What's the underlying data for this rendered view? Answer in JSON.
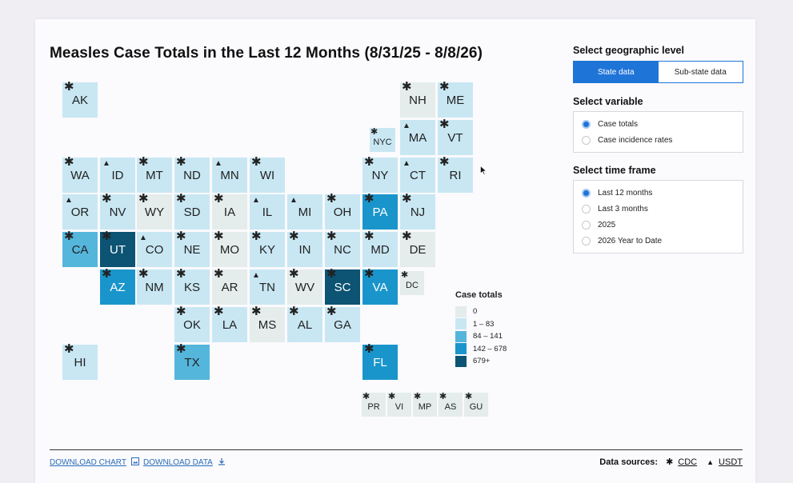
{
  "title": "Measles Case Totals in the Last 12 Months (8/31/25 - 8/8/26)",
  "tiles": [
    {
      "abbr": "AK",
      "sym": "star",
      "cat": 1
    },
    {
      "abbr": "NH",
      "sym": "star",
      "cat": 0
    },
    {
      "abbr": "ME",
      "sym": "star",
      "cat": 1
    },
    {
      "abbr": "NYC",
      "sym": "star",
      "cat": 1
    },
    {
      "abbr": "MA",
      "sym": "triangle",
      "cat": 1
    },
    {
      "abbr": "VT",
      "sym": "star",
      "cat": 1
    },
    {
      "abbr": "WA",
      "sym": "star",
      "cat": 1
    },
    {
      "abbr": "ID",
      "sym": "triangle",
      "cat": 1
    },
    {
      "abbr": "MT",
      "sym": "star",
      "cat": 1
    },
    {
      "abbr": "ND",
      "sym": "star",
      "cat": 1
    },
    {
      "abbr": "MN",
      "sym": "triangle",
      "cat": 1
    },
    {
      "abbr": "WI",
      "sym": "star",
      "cat": 1
    },
    {
      "abbr": "NY",
      "sym": "star",
      "cat": 1
    },
    {
      "abbr": "CT",
      "sym": "triangle",
      "cat": 1
    },
    {
      "abbr": "RI",
      "sym": "star",
      "cat": 1
    },
    {
      "abbr": "OR",
      "sym": "triangle",
      "cat": 1
    },
    {
      "abbr": "NV",
      "sym": "star",
      "cat": 1
    },
    {
      "abbr": "WY",
      "sym": "star",
      "cat": 0
    },
    {
      "abbr": "SD",
      "sym": "star",
      "cat": 1
    },
    {
      "abbr": "IA",
      "sym": "star",
      "cat": 0
    },
    {
      "abbr": "IL",
      "sym": "triangle",
      "cat": 1
    },
    {
      "abbr": "MI",
      "sym": "triangle",
      "cat": 1
    },
    {
      "abbr": "OH",
      "sym": "star",
      "cat": 1
    },
    {
      "abbr": "PA",
      "sym": "star",
      "cat": 3
    },
    {
      "abbr": "NJ",
      "sym": "star",
      "cat": 1
    },
    {
      "abbr": "CA",
      "sym": "star",
      "cat": 2
    },
    {
      "abbr": "UT",
      "sym": "star",
      "cat": 4
    },
    {
      "abbr": "CO",
      "sym": "triangle",
      "cat": 1
    },
    {
      "abbr": "NE",
      "sym": "star",
      "cat": 1
    },
    {
      "abbr": "MO",
      "sym": "star",
      "cat": 0
    },
    {
      "abbr": "KY",
      "sym": "star",
      "cat": 1
    },
    {
      "abbr": "IN",
      "sym": "star",
      "cat": 1
    },
    {
      "abbr": "NC",
      "sym": "star",
      "cat": 1
    },
    {
      "abbr": "MD",
      "sym": "star",
      "cat": 1
    },
    {
      "abbr": "DE",
      "sym": "star",
      "cat": 0
    },
    {
      "abbr": "AZ",
      "sym": "star",
      "cat": 3
    },
    {
      "abbr": "NM",
      "sym": "star",
      "cat": 1
    },
    {
      "abbr": "KS",
      "sym": "star",
      "cat": 1
    },
    {
      "abbr": "AR",
      "sym": "star",
      "cat": 0
    },
    {
      "abbr": "TN",
      "sym": "triangle",
      "cat": 1
    },
    {
      "abbr": "WV",
      "sym": "star",
      "cat": 0
    },
    {
      "abbr": "SC",
      "sym": "star",
      "cat": 4
    },
    {
      "abbr": "VA",
      "sym": "star",
      "cat": 3
    },
    {
      "abbr": "DC",
      "sym": "star",
      "cat": 0
    },
    {
      "abbr": "OK",
      "sym": "star",
      "cat": 1
    },
    {
      "abbr": "LA",
      "sym": "star",
      "cat": 1
    },
    {
      "abbr": "MS",
      "sym": "star",
      "cat": 0
    },
    {
      "abbr": "AL",
      "sym": "star",
      "cat": 1
    },
    {
      "abbr": "GA",
      "sym": "star",
      "cat": 1
    },
    {
      "abbr": "HI",
      "sym": "star",
      "cat": 1
    },
    {
      "abbr": "TX",
      "sym": "star",
      "cat": 2
    },
    {
      "abbr": "FL",
      "sym": "star",
      "cat": 3
    },
    {
      "abbr": "PR",
      "sym": "star",
      "cat": 0
    },
    {
      "abbr": "VI",
      "sym": "star",
      "cat": 0
    },
    {
      "abbr": "MP",
      "sym": "star",
      "cat": 0
    },
    {
      "abbr": "AS",
      "sym": "star",
      "cat": 0
    },
    {
      "abbr": "GU",
      "sym": "star",
      "cat": 0
    }
  ],
  "colors": {
    "cat0": "#e4ecec",
    "cat1": "#c8e7f3",
    "cat2": "#55b6dc",
    "cat3": "#1a95cb",
    "cat4": "#0d5373",
    "accent": "#1f74d8"
  },
  "legend": {
    "title": "Case totals",
    "items": [
      {
        "label": "0",
        "color": "#e4ecec"
      },
      {
        "label": "1 – 83",
        "color": "#c8e7f3"
      },
      {
        "label": "84 – 141",
        "color": "#55b6dc"
      },
      {
        "label": "142 – 678",
        "color": "#1a95cb"
      },
      {
        "label": "679+",
        "color": "#0d5373"
      }
    ]
  },
  "controls": {
    "geo": {
      "title": "Select geographic level",
      "options": [
        "State data",
        "Sub-state data"
      ],
      "selected": "State data"
    },
    "variable": {
      "title": "Select variable",
      "options": [
        "Case totals",
        "Case incidence rates"
      ],
      "selected": "Case totals"
    },
    "timeframe": {
      "title": "Select time frame",
      "options": [
        "Last 12 months",
        "Last 3 months",
        "2025",
        "2026 Year to Date"
      ],
      "selected": "Last 12 months"
    }
  },
  "footer": {
    "download_chart": "DOWNLOAD CHART",
    "download_data": "DOWNLOAD DATA",
    "sources_label": "Data sources:",
    "sources": [
      {
        "symbol": "star",
        "name": "CDC"
      },
      {
        "symbol": "triangle",
        "name": "USDT"
      }
    ]
  }
}
